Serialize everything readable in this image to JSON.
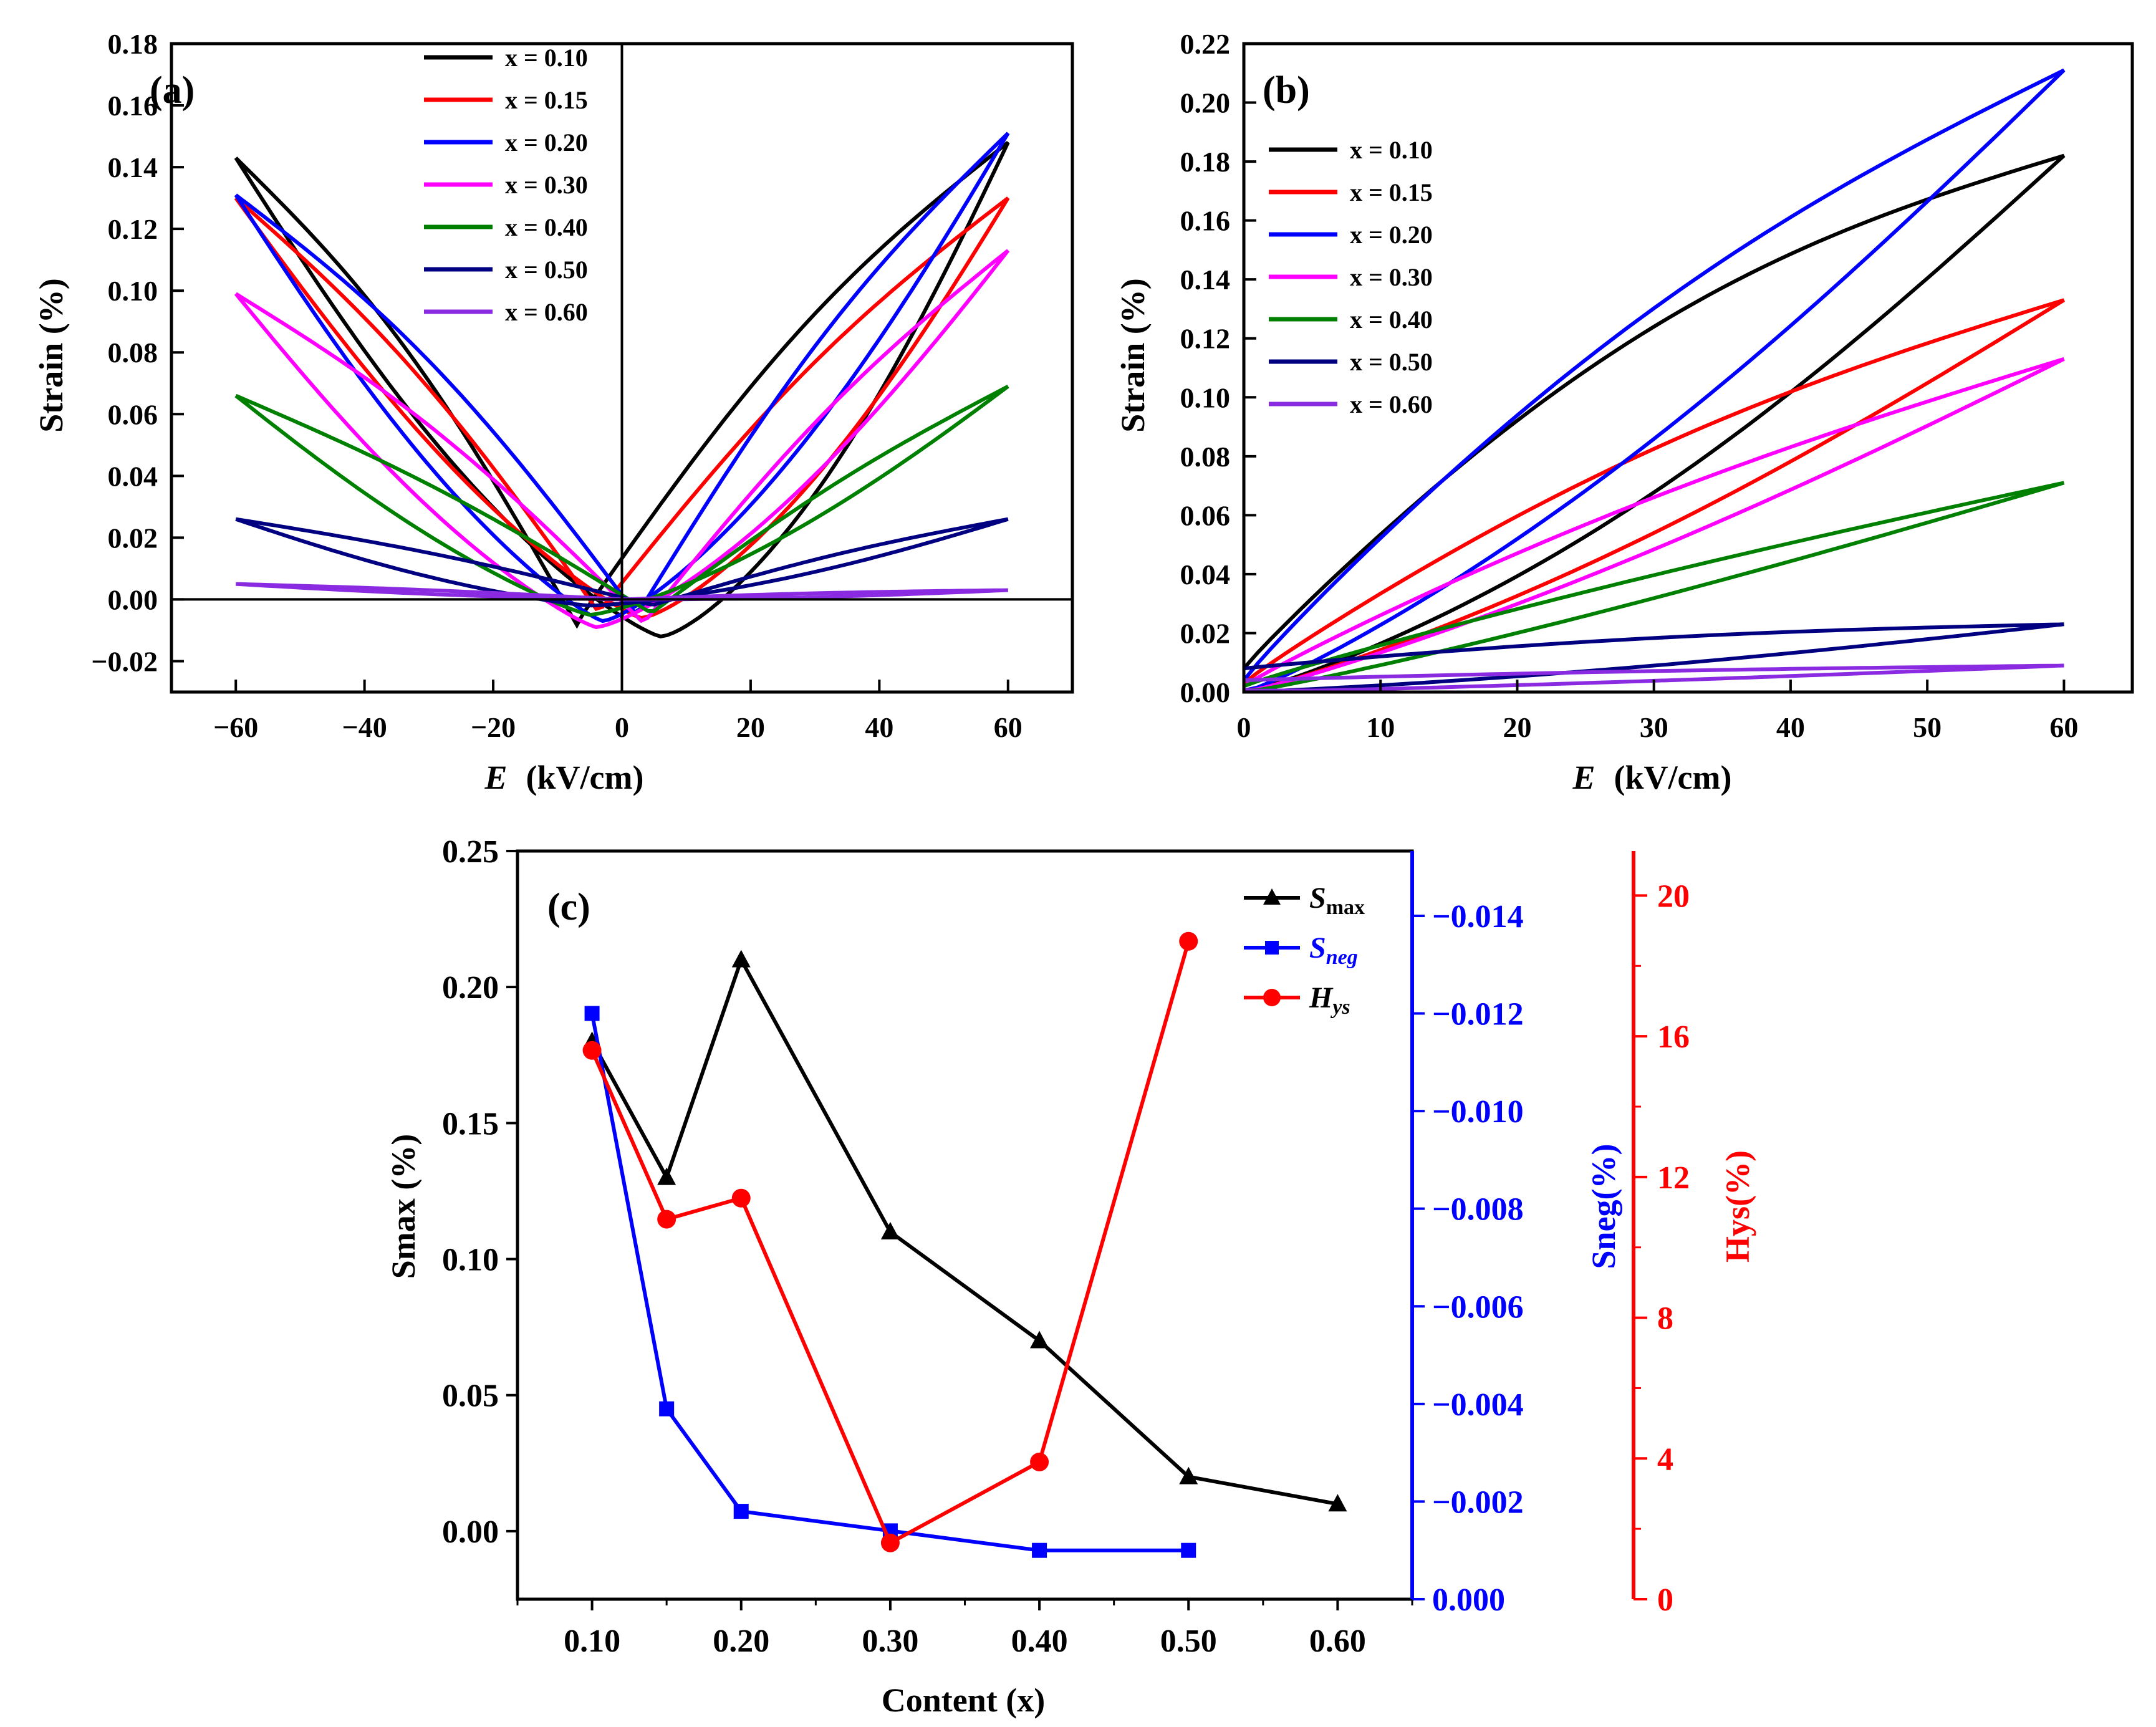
{
  "chart_data": [
    {
      "panel": "(a)",
      "type": "line",
      "title": "",
      "xlabel_var": "E",
      "xlabel_unit": "(kV/cm)",
      "ylabel": "Strain (%)",
      "xlim": [
        -70,
        70
      ],
      "ylim": [
        -0.03,
        0.18
      ],
      "xticks": [
        -60,
        -40,
        -20,
        0,
        20,
        40,
        60
      ],
      "yticks": [
        -0.02,
        0.0,
        0.02,
        0.04,
        0.06,
        0.08,
        0.1,
        0.12,
        0.14,
        0.16,
        0.18
      ],
      "ytick_labels": [
        "−0.02",
        "0.00",
        "0.02",
        "0.04",
        "0.06",
        "0.08",
        "0.10",
        "0.12",
        "0.14",
        "0.16",
        "0.18"
      ],
      "xtick_labels": [
        "−60",
        "−40",
        "−20",
        "0",
        "20",
        "40",
        "60"
      ],
      "legend_position": "top-center",
      "series": [
        {
          "name": "x = 0.10",
          "color": "#000000",
          "smax_neg": 0.143,
          "smax_pos": 0.148,
          "neg_min": -0.012,
          "neg_min_at": 6,
          "rise_offset": 0.025,
          "gap_up": 0.012,
          "gap_down": 0.014
        },
        {
          "name": "x = 0.15",
          "color": "#ff0000",
          "smax_neg": 0.13,
          "smax_pos": 0.13,
          "neg_min": -0.006,
          "neg_min_at": 3,
          "rise_offset": 0.012,
          "gap_up": 0.008,
          "gap_down": 0.01
        },
        {
          "name": "x = 0.20",
          "color": "#0000ff",
          "smax_neg": 0.131,
          "smax_pos": 0.151,
          "neg_min": -0.007,
          "neg_min_at": -3,
          "rise_offset": 0.014,
          "gap_up": 0.008,
          "gap_down": 0.012
        },
        {
          "name": "x = 0.30",
          "color": "#ff00ff",
          "smax_neg": 0.099,
          "smax_pos": 0.113,
          "neg_min": -0.009,
          "neg_min_at": -4,
          "rise_offset": 0.01,
          "gap_up": 0.006,
          "gap_down": 0.008
        },
        {
          "name": "x = 0.40",
          "color": "#008000",
          "smax_neg": 0.066,
          "smax_pos": 0.069,
          "neg_min": -0.005,
          "neg_min_at": -5,
          "rise_offset": 0.004,
          "gap_up": 0.003,
          "gap_down": 0.004
        },
        {
          "name": "x = 0.50",
          "color": "#000080",
          "smax_neg": 0.026,
          "smax_pos": 0.026,
          "neg_min": -0.002,
          "neg_min_at": -5,
          "rise_offset": 0.001,
          "gap_up": 0.002,
          "gap_down": 0.002
        },
        {
          "name": "x = 0.60",
          "color": "#8a2be2",
          "smax_neg": 0.005,
          "smax_pos": 0.003,
          "neg_min": 0.0,
          "neg_min_at": 0,
          "rise_offset": 0.0,
          "gap_up": 0.0005,
          "gap_down": 0.0005
        }
      ]
    },
    {
      "panel": "(b)",
      "type": "line",
      "title": "",
      "xlabel_var": "E",
      "xlabel_unit": "(kV/cm)",
      "ylabel": "Strain (%)",
      "xlim": [
        0,
        65
      ],
      "ylim": [
        0,
        0.22
      ],
      "xticks": [
        0,
        10,
        20,
        30,
        40,
        50,
        60
      ],
      "xtick_labels": [
        "0",
        "10",
        "20",
        "30",
        "40",
        "50",
        "60"
      ],
      "yticks": [
        0.0,
        0.02,
        0.04,
        0.06,
        0.08,
        0.1,
        0.12,
        0.14,
        0.16,
        0.18,
        0.2,
        0.22
      ],
      "ytick_labels": [
        "0.00",
        "0.02",
        "0.04",
        "0.06",
        "0.08",
        "0.10",
        "0.12",
        "0.14",
        "0.16",
        "0.18",
        "0.20",
        "0.22"
      ],
      "legend_position": "top-left",
      "series": [
        {
          "name": "x = 0.10",
          "color": "#000000",
          "smax": 0.182,
          "s0_down": 0.008,
          "loop": 0.04
        },
        {
          "name": "x = 0.15",
          "color": "#ff0000",
          "smax": 0.133,
          "s0_down": 0.003,
          "loop": 0.018
        },
        {
          "name": "x = 0.20",
          "color": "#0000ff",
          "smax": 0.211,
          "s0_down": 0.004,
          "loop": 0.028
        },
        {
          "name": "x = 0.30",
          "color": "#ff00ff",
          "smax": 0.113,
          "s0_down": 0.002,
          "loop": 0.009
        },
        {
          "name": "x = 0.40",
          "color": "#008000",
          "smax": 0.071,
          "s0_down": 0.002,
          "loop": 0.002
        },
        {
          "name": "x = 0.50",
          "color": "#000080",
          "smax": 0.023,
          "s0_down": 0.008,
          "loop": 0.004
        },
        {
          "name": "x = 0.60",
          "color": "#8a2be2",
          "smax": 0.009,
          "s0_down": 0.004,
          "loop": 0.0008
        }
      ]
    },
    {
      "panel": "(c)",
      "type": "line",
      "title": "",
      "xlabel": "Content (x)",
      "ylabel_left": "Smax (%)",
      "ylabel_mid": "Sneg(%)",
      "ylabel_right": "Hys(%)",
      "categories": [
        0.1,
        0.15,
        0.2,
        0.3,
        0.4,
        0.5,
        0.6
      ],
      "xlim": [
        0.05,
        0.65
      ],
      "xticks": [
        0.1,
        0.2,
        0.3,
        0.4,
        0.5,
        0.6
      ],
      "xtick_labels": [
        "0.10",
        "0.20",
        "0.30",
        "0.40",
        "0.50",
        "0.60"
      ],
      "y_left": {
        "ylim": [
          -0.025,
          0.25
        ],
        "ticks": [
          0.0,
          0.05,
          0.1,
          0.15,
          0.2,
          0.25
        ],
        "tick_labels": [
          "0.00",
          "0.05",
          "0.10",
          "0.15",
          "0.20",
          "0.25"
        ],
        "color": "#000000"
      },
      "y_mid": {
        "ylim": [
          0.0,
          -0.0152
        ],
        "ticks": [
          0.0,
          -0.002,
          -0.004,
          -0.006,
          -0.008,
          -0.01,
          -0.012,
          -0.014
        ],
        "tick_labels": [
          "0.000",
          "−0.002",
          "−0.004",
          "−0.006",
          "−0.008",
          "−0.010",
          "−0.012",
          "−0.014"
        ],
        "color": "#0000ff"
      },
      "y_right": {
        "ylim": [
          0,
          21
        ],
        "ticks": [
          0,
          4,
          8,
          12,
          16,
          20
        ],
        "tick_labels": [
          "0",
          "4",
          "8",
          "12",
          "16",
          "20"
        ],
        "color": "#ff0000"
      },
      "series": [
        {
          "name": "Smax",
          "axis": "left",
          "color": "#000000",
          "marker": "triangle",
          "x": [
            0.1,
            0.15,
            0.2,
            0.3,
            0.4,
            0.5,
            0.6
          ],
          "y": [
            0.18,
            0.13,
            0.21,
            0.11,
            0.07,
            0.02,
            0.01
          ]
        },
        {
          "name": "Sneg",
          "axis": "mid",
          "color": "#0000ff",
          "marker": "square",
          "x": [
            0.1,
            0.15,
            0.2,
            0.3,
            0.4,
            0.5
          ],
          "y": [
            -0.012,
            -0.0039,
            -0.0018,
            -0.0014,
            -0.001,
            -0.001
          ]
        },
        {
          "name": "Hys",
          "axis": "right",
          "color": "#ff0000",
          "marker": "circle",
          "x": [
            0.1,
            0.15,
            0.2,
            0.3,
            0.4,
            0.5
          ],
          "y": [
            15.6,
            10.8,
            11.4,
            1.6,
            3.9,
            18.7
          ]
        }
      ],
      "legend": [
        {
          "main": "S",
          "sub": "max",
          "style": "italic-sub",
          "color": "#000000"
        },
        {
          "main": "S",
          "sub": "neg",
          "style": "italic-main",
          "color": "#0000ff"
        },
        {
          "main": "H",
          "sub": "ys",
          "style": "italic-first",
          "color": "#000000"
        }
      ]
    }
  ]
}
